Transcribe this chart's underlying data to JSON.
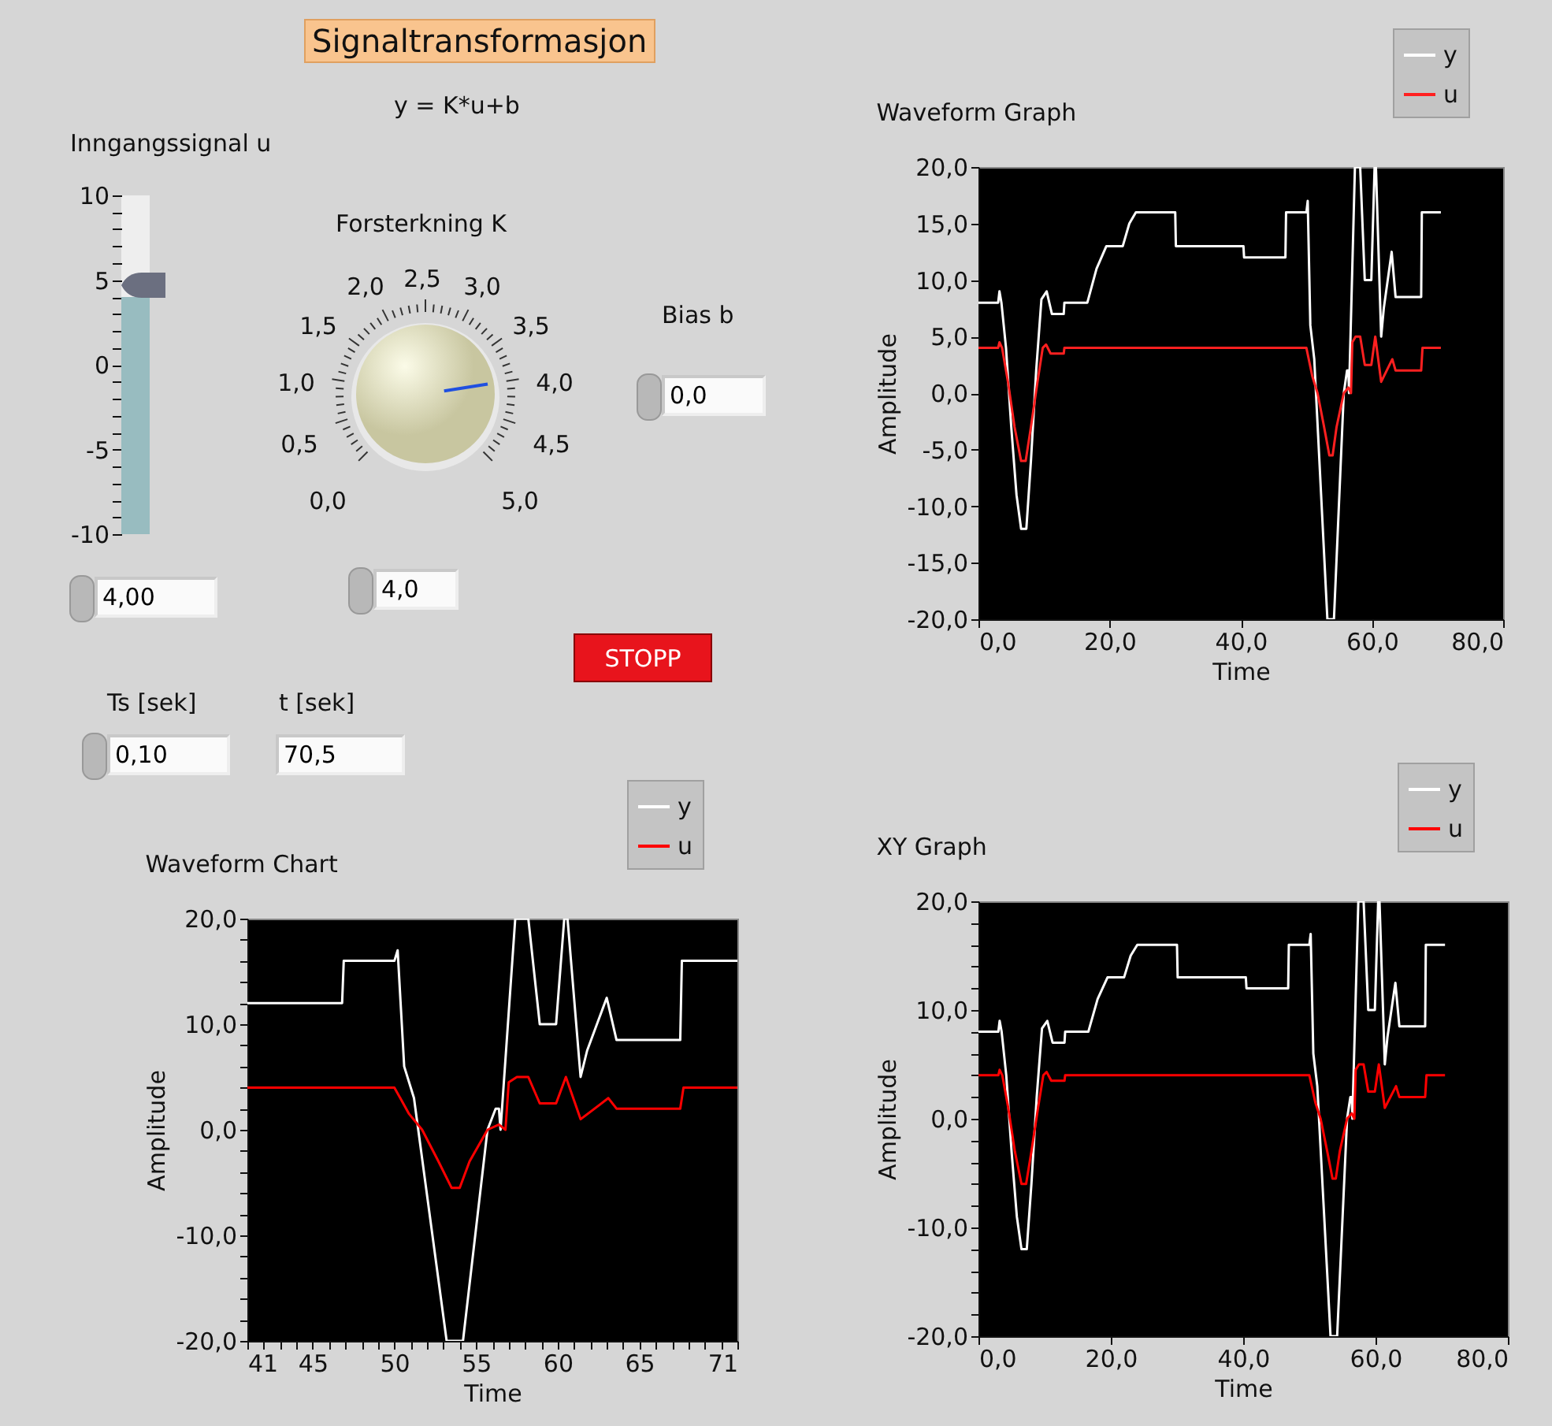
{
  "chart_data": [
    {
      "type": "other",
      "title": "Signaltransformasjon",
      "annotations": [
        "y = K*u+b",
        "4,00",
        "Forsterkning K",
        "0,0",
        "0,5",
        "1,0",
        "1,5",
        "2,0",
        "2,5",
        "3,0",
        "3,5",
        "4,0",
        "4,5",
        "5,0",
        "4,0",
        "Bias b",
        "0,0",
        "STOPP",
        "Ts [sek]",
        "0,10",
        "t [sek]",
        "70,5"
      ]
    },
    {
      "type": "bar",
      "title": "Inngangssignal u",
      "categories": [
        null
      ],
      "base": [
        -10
      ],
      "values": [
        14
      ],
      "colors": [
        "#98bcc0"
      ],
      "ylim": [
        -10,
        10
      ],
      "yticks": [
        -10,
        {
          "value": -9,
          "label": null
        },
        {
          "value": -8,
          "label": null
        },
        {
          "value": -7,
          "label": null
        },
        {
          "value": -6,
          "label": null
        },
        -5,
        {
          "value": -4,
          "label": null
        },
        {
          "value": -3,
          "label": null
        },
        {
          "value": -2,
          "label": null
        },
        {
          "value": -1,
          "label": null
        },
        0,
        {
          "value": 1,
          "label": null
        },
        {
          "value": 2,
          "label": null
        },
        {
          "value": 3,
          "label": null
        },
        {
          "value": 4,
          "label": null
        },
        5,
        {
          "value": 6,
          "label": null
        },
        {
          "value": 7,
          "label": null
        },
        {
          "value": 8,
          "label": null
        },
        {
          "value": 9,
          "label": null
        },
        10
      ]
    },
    {
      "type": "line",
      "title": "Waveform Graph",
      "xlabel": "Time",
      "ylabel": "Amplitude",
      "legend": "top right",
      "xlim": [
        0,
        80
      ],
      "ylim": [
        -20,
        20
      ],
      "xticks": [
        {
          "value": 0,
          "label": "0,0"
        },
        {
          "value": 20,
          "label": "20,0"
        },
        {
          "value": 40,
          "label": "40,0"
        },
        {
          "value": 60,
          "label": "60,0"
        },
        {
          "value": 80,
          "label": "80,0"
        }
      ],
      "yticks": [
        {
          "value": -20,
          "label": "-20,0"
        },
        {
          "value": -15,
          "label": "-15,0"
        },
        {
          "value": -10,
          "label": "-10,0"
        },
        {
          "value": -5,
          "label": "-5,0"
        },
        {
          "value": 0,
          "label": "0,0"
        },
        {
          "value": 5,
          "label": "5,0"
        },
        {
          "value": 10,
          "label": "10,0"
        },
        {
          "value": 15,
          "label": "15,0"
        },
        {
          "value": 20,
          "label": "20,0"
        }
      ],
      "series": [
        {
          "name": "y",
          "color": "#ffffff",
          "x": [
            0,
            3,
            3.2,
            3.5,
            4.2,
            5,
            5.8,
            6.5,
            7.3,
            8,
            8.8,
            9.6,
            10.4,
            11.2,
            13,
            13.1,
            16.6,
            18,
            19.5,
            22,
            23,
            24,
            30,
            30.1,
            40.4,
            40.5,
            46.8,
            46.9,
            50,
            50.2,
            50.6,
            51.2,
            53.2,
            54.2,
            55.7,
            56.2,
            56.4,
            56.5,
            57.4,
            58.2,
            58.9,
            59.9,
            60.4,
            60.6,
            61.4,
            61.8,
            63,
            63.6,
            67.5,
            67.6,
            70.5
          ],
          "values": [
            8,
            8,
            9,
            8,
            4,
            -3,
            -9,
            -12,
            -12,
            -6,
            2,
            8.3,
            9,
            7,
            7,
            8,
            8,
            11,
            13,
            13,
            15,
            16,
            16,
            13,
            13,
            12,
            12,
            16,
            16,
            17,
            6,
            3,
            -20,
            -20,
            0,
            2,
            2,
            0,
            20,
            20,
            10,
            10,
            20,
            20,
            5,
            7.5,
            12.5,
            8.5,
            8.5,
            16,
            16
          ]
        },
        {
          "name": "u",
          "color": "#ff2020",
          "x": [
            0,
            3,
            3.2,
            3.6,
            4.5,
            5.5,
            6.5,
            7.2,
            8,
            9,
            9.8,
            10.3,
            11,
            13,
            13.1,
            50,
            50.9,
            51.7,
            52.7,
            53.5,
            54,
            54.6,
            55.7,
            56.4,
            56.8,
            57,
            57.5,
            58.2,
            58.9,
            59.9,
            60.5,
            61.4,
            63.1,
            63.6,
            67.5,
            67.7,
            70.5
          ],
          "values": [
            4,
            4,
            4.5,
            4,
            1,
            -3,
            -6,
            -6,
            -3,
            1,
            4,
            4.3,
            3.5,
            3.5,
            4,
            4,
            1.5,
            0,
            -3,
            -5.5,
            -5.5,
            -3,
            0,
            0.5,
            0,
            4.5,
            5,
            5,
            2.5,
            2.5,
            5,
            1,
            3,
            2,
            2,
            4,
            4
          ]
        }
      ]
    },
    {
      "type": "line",
      "title": "Waveform Chart",
      "xlabel": "Time",
      "ylabel": "Amplitude",
      "legend": "top right",
      "xlim": [
        41,
        71
      ],
      "ylim": [
        -20,
        20
      ],
      "xticks": [
        41,
        {
          "value": 42,
          "label": null
        },
        {
          "value": 43,
          "label": null
        },
        {
          "value": 44,
          "label": null
        },
        45,
        {
          "value": 46,
          "label": null
        },
        {
          "value": 47,
          "label": null
        },
        {
          "value": 48,
          "label": null
        },
        {
          "value": 49,
          "label": null
        },
        50,
        {
          "value": 51,
          "label": null
        },
        {
          "value": 52,
          "label": null
        },
        {
          "value": 53,
          "label": null
        },
        {
          "value": 54,
          "label": null
        },
        55,
        {
          "value": 56,
          "label": null
        },
        {
          "value": 57,
          "label": null
        },
        {
          "value": 58,
          "label": null
        },
        {
          "value": 59,
          "label": null
        },
        60,
        {
          "value": 61,
          "label": null
        },
        {
          "value": 62,
          "label": null
        },
        {
          "value": 63,
          "label": null
        },
        {
          "value": 64,
          "label": null
        },
        65,
        {
          "value": 66,
          "label": null
        },
        {
          "value": 67,
          "label": null
        },
        {
          "value": 68,
          "label": null
        },
        {
          "value": 69,
          "label": null
        },
        {
          "value": 70,
          "label": null
        },
        71
      ],
      "yticks": [
        {
          "value": -20,
          "label": "-20,0"
        },
        {
          "value": -18,
          "label": null
        },
        {
          "value": -16,
          "label": null
        },
        {
          "value": -14,
          "label": null
        },
        {
          "value": -12,
          "label": null
        },
        {
          "value": -10,
          "label": "-10,0"
        },
        {
          "value": -8,
          "label": null
        },
        {
          "value": -6,
          "label": null
        },
        {
          "value": -4,
          "label": null
        },
        {
          "value": -2,
          "label": null
        },
        {
          "value": 0,
          "label": "0,0"
        },
        {
          "value": 2,
          "label": null
        },
        {
          "value": 4,
          "label": null
        },
        {
          "value": 6,
          "label": null
        },
        {
          "value": 8,
          "label": null
        },
        {
          "value": 10,
          "label": "10,0"
        },
        {
          "value": 12,
          "label": null
        },
        {
          "value": 14,
          "label": null
        },
        {
          "value": 16,
          "label": null
        },
        {
          "value": 18,
          "label": null
        },
        {
          "value": 20,
          "label": "20,0"
        }
      ],
      "series": [
        {
          "name": "y",
          "color": "#ffffff",
          "x": [
            41,
            46.8,
            46.9,
            50,
            50.2,
            50.6,
            51.2,
            53.2,
            54.2,
            55.7,
            56.2,
            56.4,
            56.5,
            57.4,
            58.2,
            58.9,
            59.9,
            60.4,
            60.6,
            61.4,
            61.8,
            63,
            63.6,
            67.5,
            67.6,
            71
          ],
          "values": [
            12,
            12,
            16,
            16,
            17,
            6,
            3,
            -20,
            -20,
            0,
            2,
            2,
            0,
            20,
            20,
            10,
            10,
            20,
            20,
            5,
            7.5,
            12.5,
            8.5,
            8.5,
            16,
            16
          ]
        },
        {
          "name": "u",
          "color": "#ff0000",
          "x": [
            41,
            50,
            50.9,
            51.7,
            52.7,
            53.5,
            54,
            54.6,
            55.7,
            56.4,
            56.8,
            57,
            57.5,
            58.2,
            58.9,
            59.9,
            60.5,
            61.4,
            63.1,
            63.6,
            67.5,
            67.7,
            71
          ],
          "values": [
            4,
            4,
            1.5,
            0,
            -3,
            -5.5,
            -5.5,
            -3,
            0,
            0.5,
            0,
            4.5,
            5,
            5,
            2.5,
            2.5,
            5,
            1,
            3,
            2,
            2,
            4,
            4
          ]
        }
      ]
    },
    {
      "type": "line",
      "title": "XY Graph",
      "xlabel": "Time",
      "ylabel": "Amplitude",
      "legend": "top right",
      "xlim": [
        0,
        80
      ],
      "ylim": [
        -20,
        20
      ],
      "xticks": [
        {
          "value": 0,
          "label": "0,0"
        },
        {
          "value": 20,
          "label": "20,0"
        },
        {
          "value": 40,
          "label": "40,0"
        },
        {
          "value": 60,
          "label": "60,0"
        },
        {
          "value": 80,
          "label": "80,0"
        }
      ],
      "yticks": [
        {
          "value": -20,
          "label": "-20,0"
        },
        {
          "value": -18,
          "label": null
        },
        {
          "value": -16,
          "label": null
        },
        {
          "value": -14,
          "label": null
        },
        {
          "value": -12,
          "label": null
        },
        {
          "value": -10,
          "label": "-10,0"
        },
        {
          "value": -8,
          "label": null
        },
        {
          "value": -6,
          "label": null
        },
        {
          "value": -4,
          "label": null
        },
        {
          "value": -2,
          "label": null
        },
        {
          "value": 0,
          "label": "0,0"
        },
        {
          "value": 2,
          "label": null
        },
        {
          "value": 4,
          "label": null
        },
        {
          "value": 6,
          "label": null
        },
        {
          "value": 8,
          "label": null
        },
        {
          "value": 10,
          "label": "10,0"
        },
        {
          "value": 12,
          "label": null
        },
        {
          "value": 14,
          "label": null
        },
        {
          "value": 16,
          "label": null
        },
        {
          "value": 18,
          "label": null
        },
        {
          "value": 20,
          "label": "20,0"
        }
      ],
      "series": [
        {
          "name": "y",
          "color": "#ffffff",
          "x": [
            0,
            3,
            3.2,
            3.5,
            4.2,
            5,
            5.8,
            6.5,
            7.3,
            8,
            8.8,
            9.6,
            10.4,
            11.2,
            13,
            13.1,
            16.6,
            18,
            19.5,
            22,
            23,
            24,
            30,
            30.1,
            40.4,
            40.5,
            46.8,
            46.9,
            50,
            50.2,
            50.6,
            51.2,
            53.2,
            54.2,
            55.7,
            56.2,
            56.4,
            56.5,
            57.4,
            58.2,
            58.9,
            59.9,
            60.4,
            60.6,
            61.4,
            61.8,
            63,
            63.6,
            67.5,
            67.6,
            70.5
          ],
          "values": [
            8,
            8,
            9,
            8,
            4,
            -3,
            -9,
            -12,
            -12,
            -6,
            2,
            8.3,
            9,
            7,
            7,
            8,
            8,
            11,
            13,
            13,
            15,
            16,
            16,
            13,
            13,
            12,
            12,
            16,
            16,
            17,
            6,
            3,
            -20,
            -20,
            0,
            2,
            2,
            0,
            20,
            20,
            10,
            10,
            20,
            20,
            5,
            7.5,
            12.5,
            8.5,
            8.5,
            16,
            16
          ]
        },
        {
          "name": "u",
          "color": "#ff0000",
          "x": [
            0,
            3,
            3.2,
            3.6,
            4.5,
            5.5,
            6.5,
            7.2,
            8,
            9,
            9.8,
            10.3,
            11,
            13,
            13.1,
            50,
            50.9,
            51.7,
            52.7,
            53.5,
            54,
            54.6,
            55.7,
            56.4,
            56.8,
            57,
            57.5,
            58.2,
            58.9,
            59.9,
            60.5,
            61.4,
            63.1,
            63.6,
            67.5,
            67.7,
            70.5
          ],
          "values": [
            4,
            4,
            4.5,
            4,
            1,
            -3,
            -6,
            -6,
            -3,
            1,
            4,
            4.3,
            3.5,
            3.5,
            4,
            4,
            1.5,
            0,
            -3,
            -5.5,
            -5.5,
            -3,
            0,
            0.5,
            0,
            4.5,
            5,
            5,
            2.5,
            2.5,
            5,
            1,
            3,
            2,
            2,
            4,
            4
          ]
        }
      ]
    }
  ]
}
